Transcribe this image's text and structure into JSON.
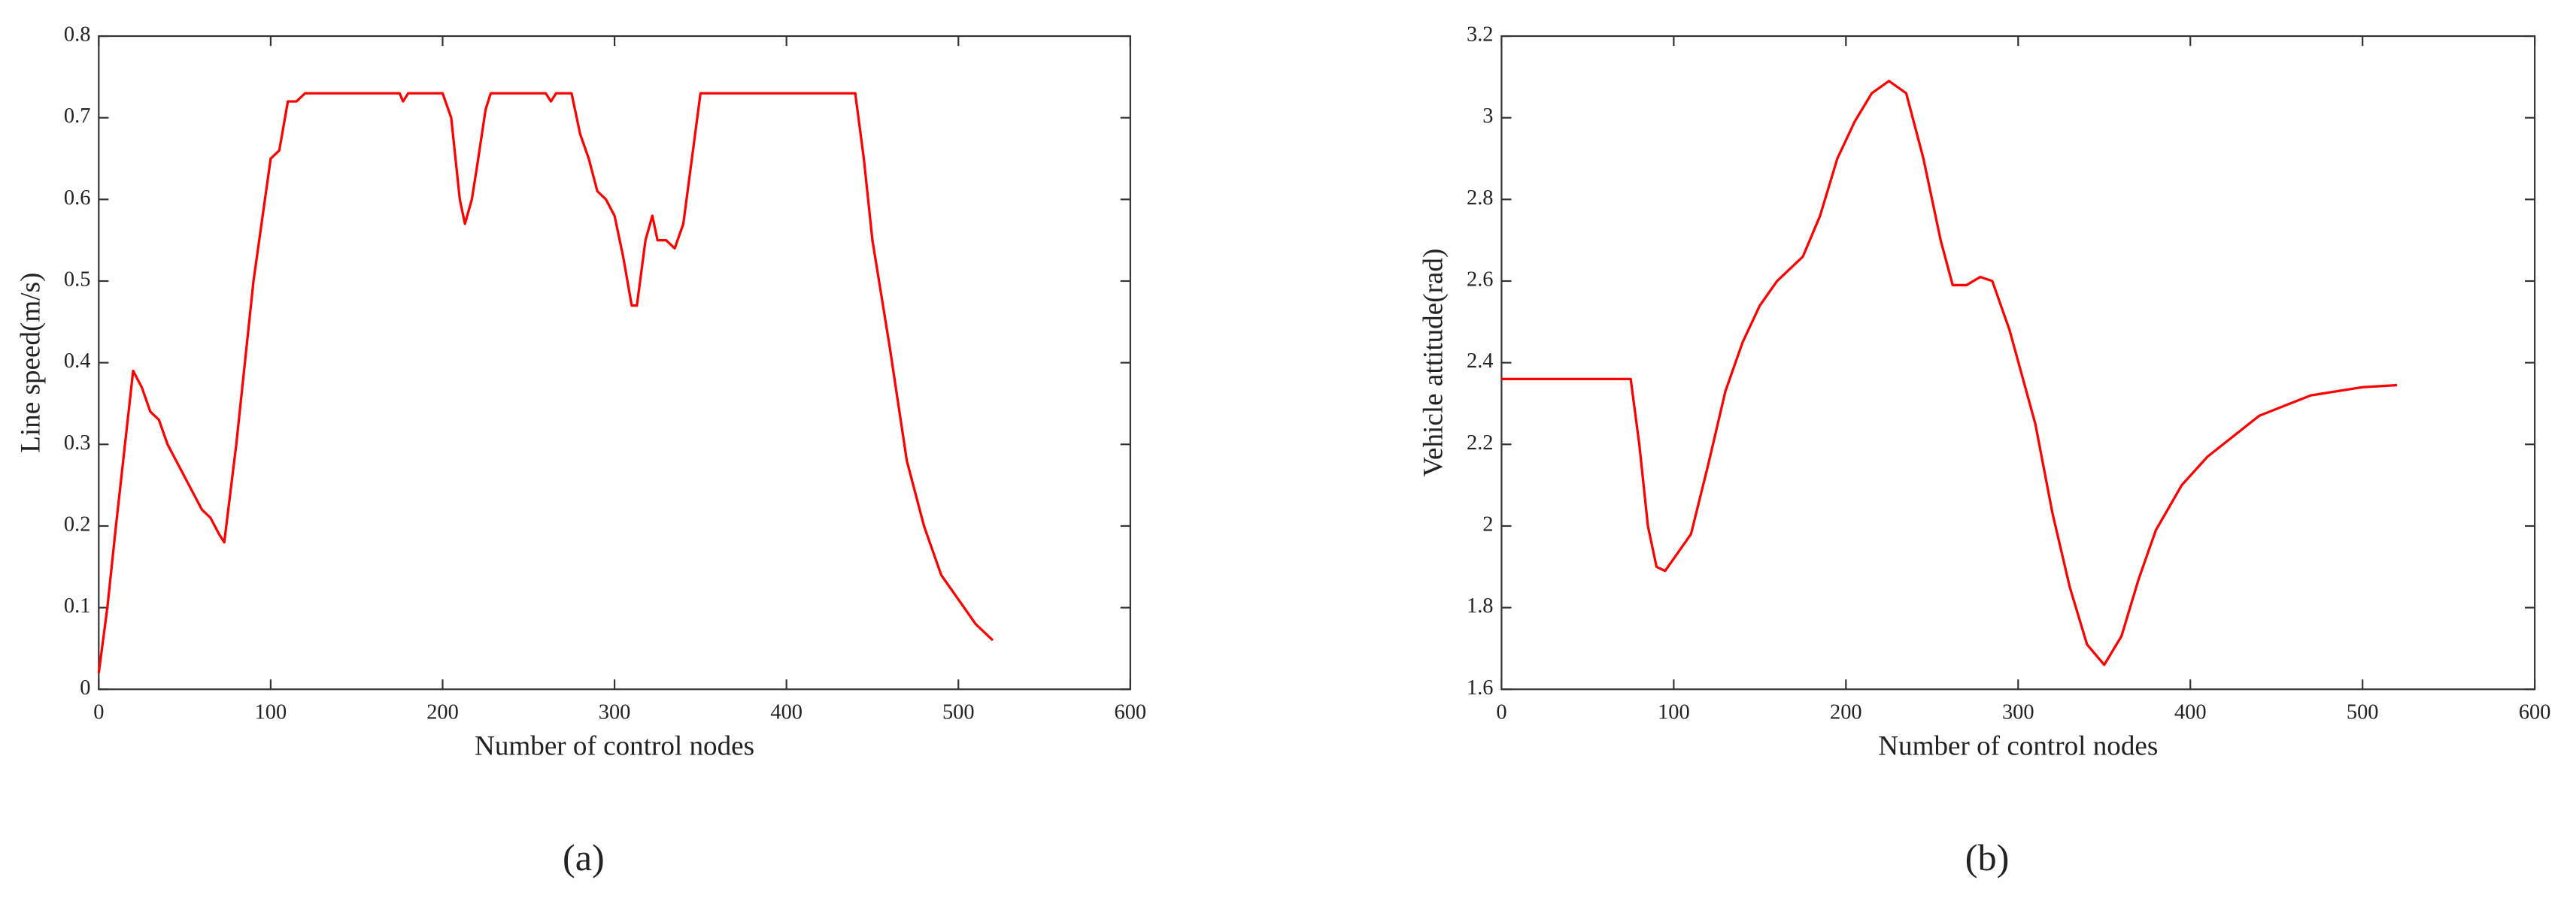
{
  "chart_data": [
    {
      "type": "line",
      "x_label": "Number of control nodes",
      "y_label": "Line speed(m/s)",
      "caption": "(a)",
      "xlim": [
        0,
        600
      ],
      "xticks": [
        0,
        100,
        200,
        300,
        400,
        500,
        600
      ],
      "ylim": [
        0,
        0.8
      ],
      "yticks": [
        0,
        0.1,
        0.2,
        0.3,
        0.4,
        0.5,
        0.6,
        0.7,
        0.8
      ],
      "x": [
        0,
        5,
        10,
        20,
        25,
        30,
        35,
        40,
        45,
        50,
        55,
        60,
        65,
        70,
        73,
        80,
        90,
        100,
        105,
        110,
        115,
        120,
        175,
        177,
        180,
        200,
        205,
        210,
        213,
        217,
        220,
        225,
        228,
        260,
        263,
        266,
        275,
        280,
        285,
        290,
        295,
        300,
        305,
        310,
        313,
        318,
        322,
        325,
        330,
        335,
        340,
        345,
        350,
        440,
        445,
        450,
        460,
        470,
        480,
        490,
        500,
        510,
        520
      ],
      "series": [
        {
          "color": "#ff0000",
          "values": [
            0.02,
            0.1,
            0.2,
            0.39,
            0.37,
            0.34,
            0.33,
            0.3,
            0.28,
            0.26,
            0.24,
            0.22,
            0.21,
            0.19,
            0.18,
            0.3,
            0.5,
            0.65,
            0.66,
            0.72,
            0.72,
            0.73,
            0.73,
            0.72,
            0.73,
            0.73,
            0.7,
            0.6,
            0.57,
            0.6,
            0.64,
            0.71,
            0.73,
            0.73,
            0.72,
            0.73,
            0.73,
            0.68,
            0.65,
            0.61,
            0.6,
            0.58,
            0.53,
            0.47,
            0.47,
            0.55,
            0.58,
            0.55,
            0.55,
            0.54,
            0.57,
            0.65,
            0.73,
            0.73,
            0.65,
            0.55,
            0.42,
            0.28,
            0.2,
            0.14,
            0.11,
            0.08,
            0.06
          ]
        }
      ]
    },
    {
      "type": "line",
      "x_label": "Number of control nodes",
      "y_label": "Vehicle attitude(rad)",
      "caption": "(b)",
      "xlim": [
        0,
        600
      ],
      "xticks": [
        0,
        100,
        200,
        300,
        400,
        500,
        600
      ],
      "ylim": [
        1.6,
        3.2
      ],
      "yticks": [
        1.6,
        1.8,
        2,
        2.2,
        2.4,
        2.6,
        2.8,
        3,
        3.2
      ],
      "x": [
        0,
        75,
        80,
        85,
        90,
        95,
        100,
        110,
        120,
        130,
        140,
        150,
        160,
        175,
        185,
        195,
        205,
        215,
        225,
        235,
        245,
        255,
        262,
        270,
        278,
        285,
        295,
        310,
        320,
        330,
        340,
        350,
        360,
        370,
        380,
        395,
        410,
        440,
        470,
        500,
        520
      ],
      "series": [
        {
          "color": "#ff0000",
          "values": [
            2.36,
            2.36,
            2.2,
            2.0,
            1.9,
            1.89,
            1.92,
            1.98,
            2.15,
            2.33,
            2.45,
            2.54,
            2.6,
            2.66,
            2.76,
            2.9,
            2.99,
            3.06,
            3.09,
            3.06,
            2.9,
            2.7,
            2.59,
            2.59,
            2.61,
            2.6,
            2.48,
            2.25,
            2.03,
            1.85,
            1.71,
            1.66,
            1.73,
            1.87,
            1.99,
            2.1,
            2.17,
            2.27,
            2.32,
            2.34,
            2.345
          ]
        }
      ]
    }
  ]
}
